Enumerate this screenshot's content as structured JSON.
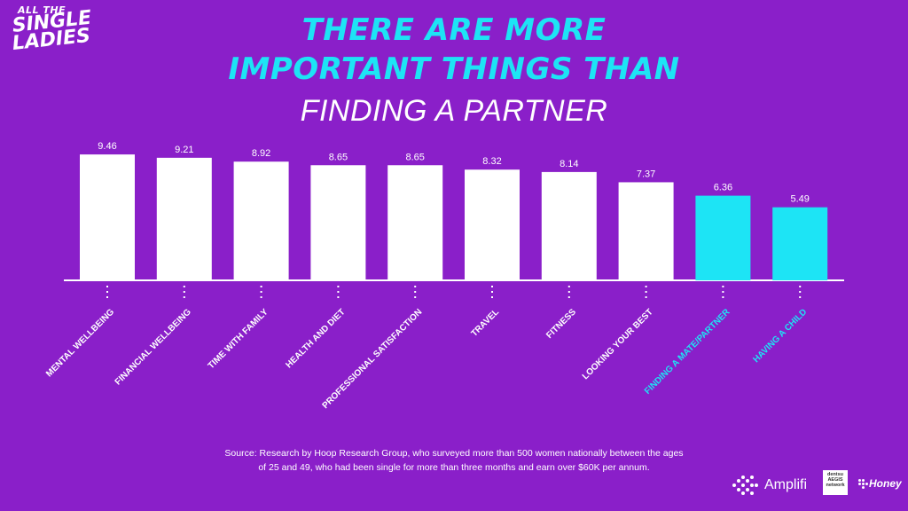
{
  "logo": {
    "line1": "ALL THE",
    "line2": "SINGLE",
    "line3": "LADIES"
  },
  "title": {
    "line1": "THERE ARE MORE",
    "line2": "IMPORTANT THINGS THAN",
    "line3": "FINDING A PARTNER"
  },
  "chart_data": {
    "type": "bar",
    "categories": [
      "MENTAL WELLBEING",
      "FINANCIAL WELLBEING",
      "TIME WITH FAMILY",
      "HEALTH AND DIET",
      "PROFESSIONAL SATISFACTION",
      "TRAVEL",
      "FITNESS",
      "LOOKING YOUR BEST",
      "FINDING A MATE/PARTNER",
      "HAVING A CHILD"
    ],
    "values": [
      9.46,
      9.21,
      8.92,
      8.65,
      8.65,
      8.32,
      8.14,
      7.37,
      6.36,
      5.49
    ],
    "value_labels": [
      "9.46",
      "9.21",
      "8.92",
      "8.65",
      "8.65",
      "8.32",
      "8.14",
      "7.37",
      "6.36",
      "5.49"
    ],
    "highlighted": [
      false,
      false,
      false,
      false,
      false,
      false,
      false,
      false,
      true,
      true
    ],
    "colors": {
      "normal": "#ffffff",
      "highlight": "#1de4f5",
      "background": "#8a1fc9"
    },
    "ylim": [
      0,
      10
    ],
    "grid": false,
    "legend": "none"
  },
  "source_text": {
    "line1": "Source: Research by Hoop Research Group, who surveyed more than 500 women nationally between the ages",
    "line2": "of 25 and 49, who had been single for more than three months and earn over $60K per annum."
  },
  "brands": {
    "amplifi": "Amplifi",
    "dentsu_line1": "dentsu",
    "dentsu_line2": "AEGIS",
    "dentsu_line3": "network",
    "honey": "Honey"
  }
}
